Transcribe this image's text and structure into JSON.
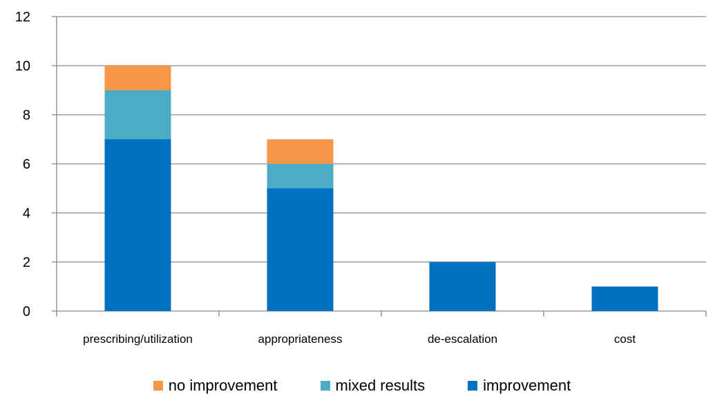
{
  "chart_data": {
    "type": "bar",
    "stacked": true,
    "categories": [
      "prescribing/utilization",
      "appropriateness",
      "de-escalation",
      "cost"
    ],
    "series": [
      {
        "name": "improvement",
        "values": [
          7,
          5,
          2,
          1
        ],
        "color": "#0070C0"
      },
      {
        "name": "mixed results",
        "values": [
          2,
          1,
          0,
          0
        ],
        "color": "#4BACC6"
      },
      {
        "name": "no improvement",
        "values": [
          1,
          1,
          0,
          0
        ],
        "color": "#F79646"
      }
    ],
    "legend_order": [
      "no improvement",
      "mixed results",
      "improvement"
    ],
    "legend_position": "bottom",
    "ylim": [
      0,
      12
    ],
    "yticks": [
      0,
      2,
      4,
      6,
      8,
      10,
      12
    ],
    "grid": true,
    "title": "",
    "xlabel": "",
    "ylabel": ""
  }
}
